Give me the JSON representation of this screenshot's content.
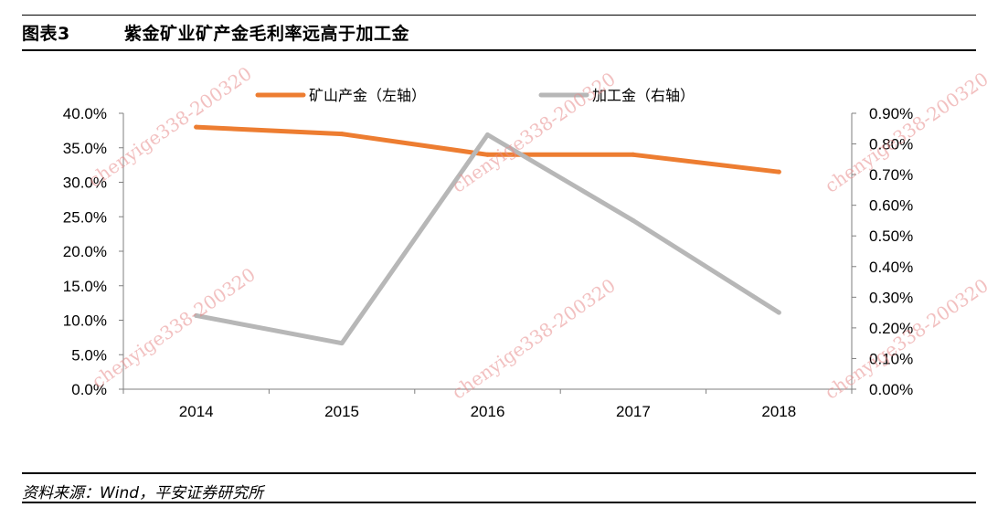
{
  "figure": {
    "label": "图表3",
    "title": "紫金矿业矿产金毛利率远高于加工金",
    "source": "资料来源：Wind，平安证券研究所"
  },
  "watermark": {
    "text": "chenyige338-200320"
  },
  "colors": {
    "mine_gold": "#ED7D31",
    "processed_gold": "#B7B7B7"
  },
  "chart_data": {
    "type": "line",
    "categories": [
      "2014",
      "2015",
      "2016",
      "2017",
      "2018"
    ],
    "series": [
      {
        "name": "矿山产金（左轴）",
        "axis": "left",
        "values": [
          38.0,
          37.0,
          34.0,
          34.0,
          31.5
        ],
        "color": "#ED7D31"
      },
      {
        "name": "加工金（右轴）",
        "axis": "right",
        "values": [
          0.24,
          0.15,
          0.83,
          0.55,
          0.25
        ],
        "color": "#B7B7B7"
      }
    ],
    "left_axis": {
      "min": 0,
      "max": 40,
      "step": 5,
      "tick_labels": [
        "0.0%",
        "5.0%",
        "10.0%",
        "15.0%",
        "20.0%",
        "25.0%",
        "30.0%",
        "35.0%",
        "40.0%"
      ]
    },
    "right_axis": {
      "min": 0,
      "max": 0.9,
      "step": 0.1,
      "tick_labels": [
        "0.00%",
        "0.10%",
        "0.20%",
        "0.30%",
        "0.40%",
        "0.50%",
        "0.60%",
        "0.70%",
        "0.80%",
        "0.90%"
      ]
    },
    "legend_position": "top",
    "grid": false
  }
}
